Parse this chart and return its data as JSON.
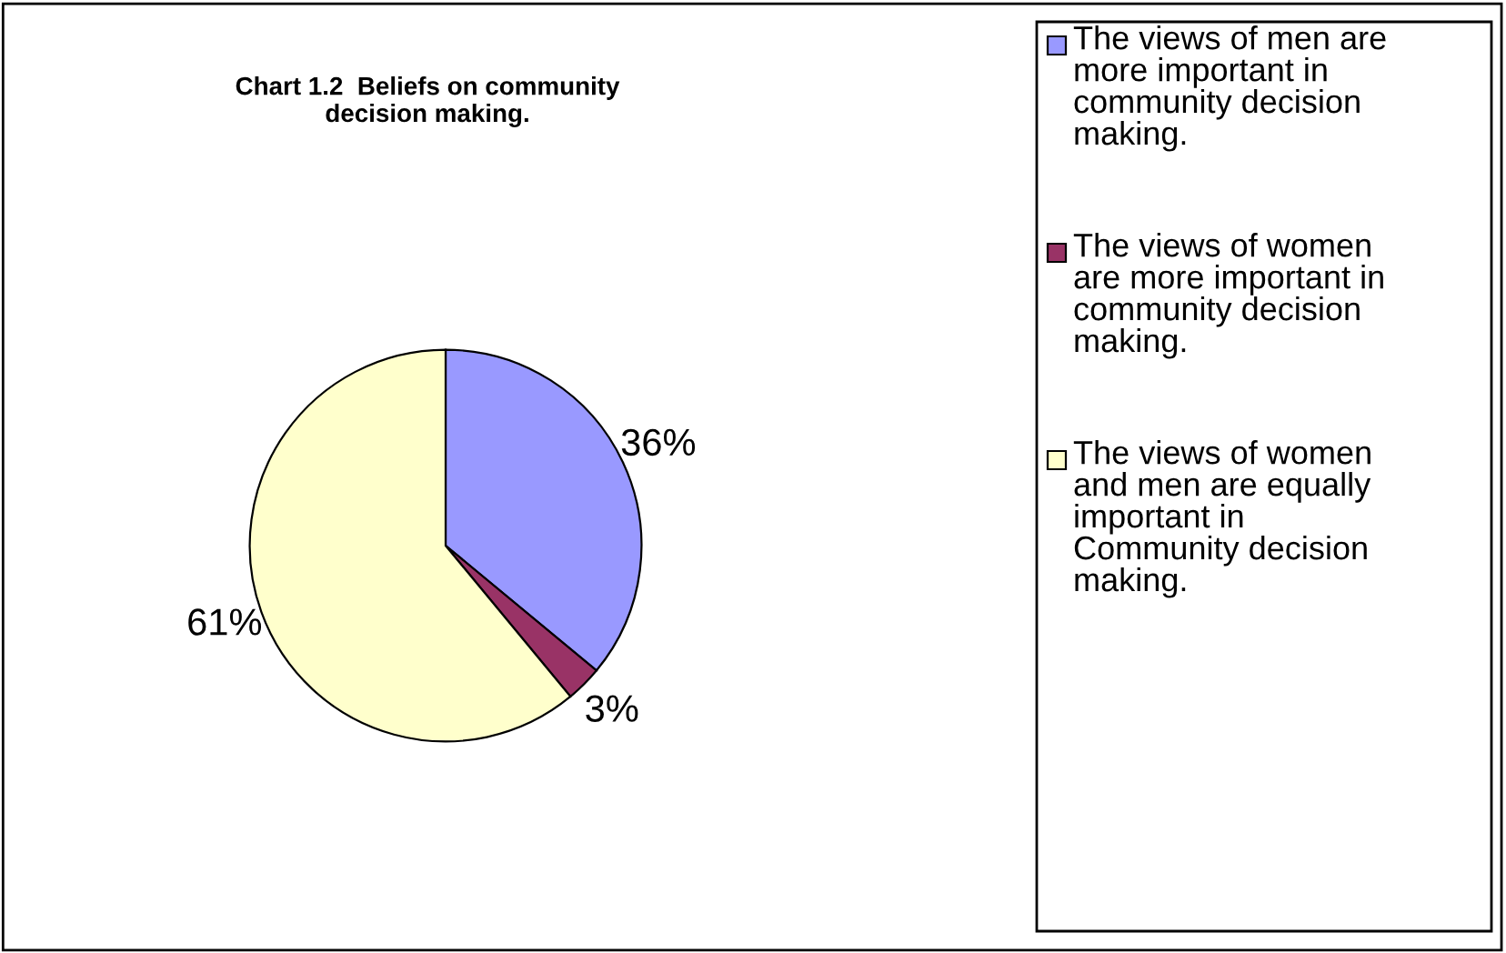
{
  "chart_data": {
    "type": "pie",
    "title": "Chart 1.2  Beliefs on community\ndecision making.",
    "categories": [
      "The views of men are more important in community decision making.",
      "The views of women are more important in community decision making.",
      "The views of women and men are equally important in Community decision making."
    ],
    "values": [
      36,
      3,
      61
    ],
    "value_labels": [
      "36%",
      "3%",
      "61%"
    ],
    "colors": [
      "#9999ff",
      "#993366",
      "#ffffcc"
    ],
    "legend": "right"
  }
}
